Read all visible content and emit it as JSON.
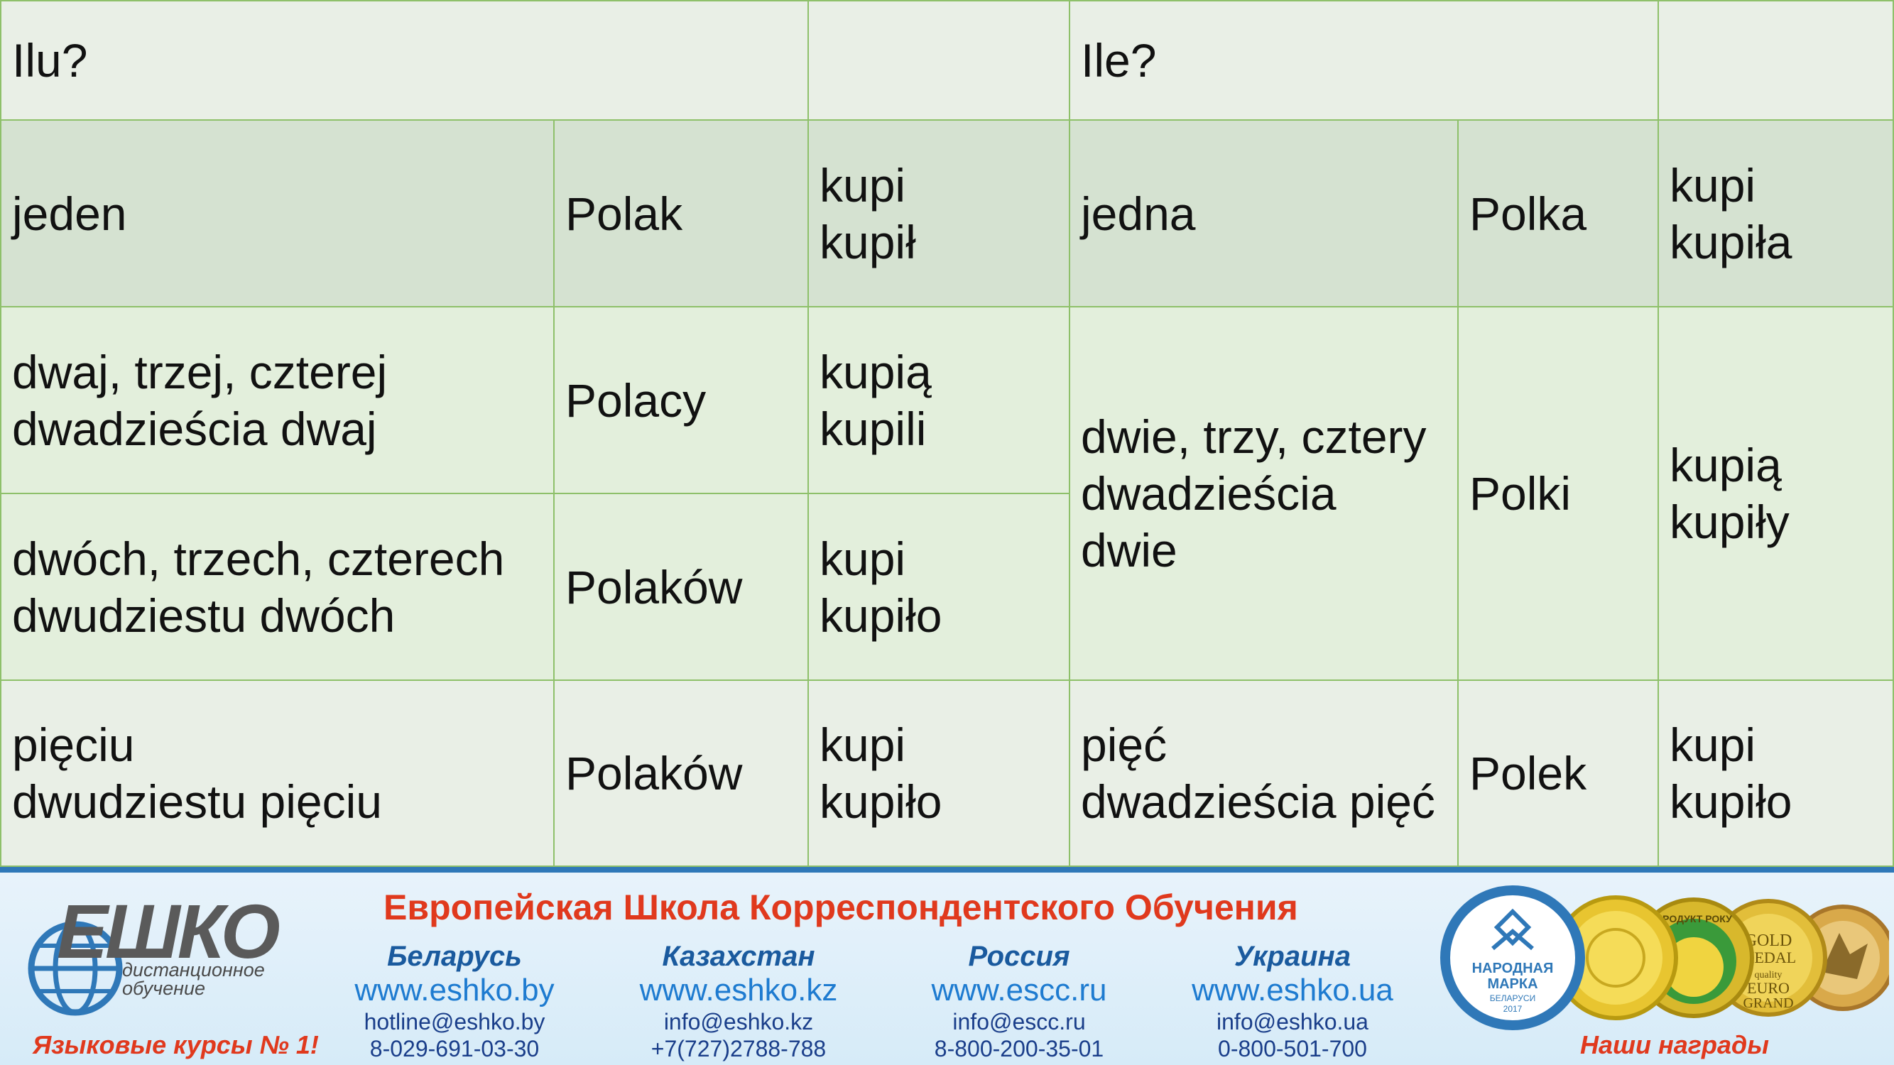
{
  "table": {
    "r0": {
      "c0": "Ilu?",
      "c1": "",
      "c2": "Ile?",
      "c3": ""
    },
    "r1": {
      "c0": "jeden",
      "c1": "Polak",
      "c2": "kupi\nkupił",
      "c3": "jedna",
      "c4": "Polka",
      "c5": "kupi\nkupiła"
    },
    "r2": {
      "c0": "dwaj, trzej, czterej\ndwadzieścia dwaj",
      "c1": "Polacy",
      "c2": "kupią\nkupili"
    },
    "r3": {
      "c0": "dwóch, trzech, czterech\ndwudziestu dwóch",
      "c1": "Polaków",
      "c2": "kupi\nkupiło"
    },
    "merged": {
      "c3": " dwie, trzy, cztery\ndwadzieścia\ndwie",
      "c4": " Polki",
      "c5": "kupią\nkupiły"
    },
    "r4": {
      "c0": "pięciu\ndwudziestu pięciu",
      "c1": "Polaków",
      "c2": "kupi\nkupiło",
      "c3": "pięć\ndwadzieścia pięć",
      "c4": "Polek",
      "c5": "kupi\nkupiło"
    }
  },
  "footer": {
    "logo": {
      "word": "ЕШКО",
      "sub_line1": "дистанционное",
      "sub_line2": "обучение",
      "tagline": "Языковые курсы № 1!"
    },
    "school_name": "Европейская Школа Корреспондентского Обучения",
    "countries": [
      {
        "name": "Беларусь",
        "web": "www.eshko.by",
        "email": "hotline@eshko.by",
        "phone": "8-029-691-03-30"
      },
      {
        "name": "Казахстан",
        "web": "www.eshko.kz",
        "email": "info@eshko.kz",
        "phone": "+7(727)2788-788"
      },
      {
        "name": "Россия",
        "web": "www.escc.ru",
        "email": "info@escc.ru",
        "phone": "8-800-200-35-01"
      },
      {
        "name": "Украина",
        "web": "www.eshko.ua",
        "email": "info@eshko.ua",
        "phone": "0-800-501-700"
      }
    ],
    "awards_label": "Наши награды",
    "badge": {
      "line1": "НАРОДНАЯ",
      "line2": "МАРКА",
      "line3": "БЕЛАРУСИ",
      "year": "2017"
    },
    "medal2": "ПРОДУКТ РОКУ",
    "medal3": {
      "line1": "GOLD",
      "line2": "MEDAL",
      "line3": "quality",
      "line4": "EURO",
      "line5": "GRAND"
    }
  },
  "colors": {
    "border": "#8ec06a",
    "accent_red": "#e0391d",
    "accent_blue": "#1e7bd0"
  }
}
